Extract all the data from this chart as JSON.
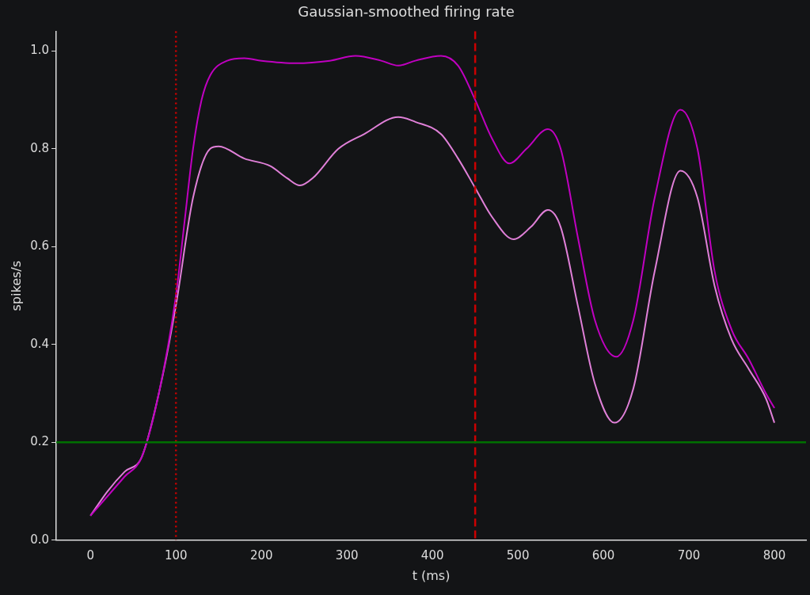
{
  "chart_data": {
    "type": "line",
    "title": "Gaussian-smoothed firing rate",
    "xlabel": "t (ms)",
    "ylabel": "spikes/s",
    "series": [
      {
        "color": "#c000c0",
        "x": [
          0,
          20,
          40,
          60,
          80,
          100,
          110,
          120,
          130,
          140,
          160,
          180,
          200,
          240,
          280,
          310,
          340,
          360,
          380,
          410,
          430,
          450,
          470,
          490,
          510,
          535,
          550,
          570,
          590,
          615,
          635,
          660,
          690,
          710,
          730,
          750,
          770,
          790,
          800
        ],
        "values": [
          0.05,
          0.09,
          0.13,
          0.17,
          0.3,
          0.5,
          0.65,
          0.8,
          0.9,
          0.95,
          0.98,
          0.985,
          0.98,
          0.975,
          0.98,
          0.99,
          0.98,
          0.97,
          0.98,
          0.99,
          0.97,
          0.9,
          0.82,
          0.77,
          0.8,
          0.84,
          0.8,
          0.62,
          0.45,
          0.375,
          0.45,
          0.7,
          0.88,
          0.8,
          0.55,
          0.43,
          0.37,
          0.3,
          0.27
        ]
      },
      {
        "color": "#e080d8",
        "x": [
          0,
          20,
          40,
          60,
          80,
          100,
          120,
          140,
          150,
          180,
          210,
          230,
          245,
          260,
          290,
          320,
          360,
          380,
          410,
          430,
          450,
          470,
          495,
          515,
          535,
          550,
          570,
          590,
          613,
          635,
          660,
          690,
          710,
          730,
          750,
          770,
          790,
          800
        ],
        "values": [
          0.05,
          0.1,
          0.14,
          0.17,
          0.3,
          0.48,
          0.7,
          0.8,
          0.805,
          0.78,
          0.765,
          0.74,
          0.725,
          0.74,
          0.8,
          0.83,
          0.865,
          0.855,
          0.83,
          0.78,
          0.72,
          0.66,
          0.615,
          0.64,
          0.675,
          0.64,
          0.48,
          0.32,
          0.24,
          0.31,
          0.55,
          0.755,
          0.7,
          0.52,
          0.41,
          0.35,
          0.29,
          0.24
        ]
      }
    ],
    "ref_lines": [
      {
        "axis": "x",
        "value": 100,
        "color": "#cc0000",
        "line_style": "dotted"
      },
      {
        "axis": "x",
        "value": 450,
        "color": "#cc0000",
        "line_style": "dashed"
      },
      {
        "axis": "y",
        "value": 0.2,
        "color": "#007000",
        "line_style": "solid"
      }
    ],
    "xlim": [
      -40,
      837
    ],
    "ylim": [
      0,
      1.04
    ],
    "xticks": [
      0,
      100,
      200,
      300,
      400,
      500,
      600,
      700,
      800
    ],
    "yticks": [
      {
        "value": 0,
        "label": "0.0"
      },
      0.2,
      0.4,
      0.6,
      0.8,
      {
        "value": 1,
        "label": "1.0"
      }
    ],
    "grid": false,
    "legend": false,
    "marker": "none",
    "line_style": "solid"
  }
}
